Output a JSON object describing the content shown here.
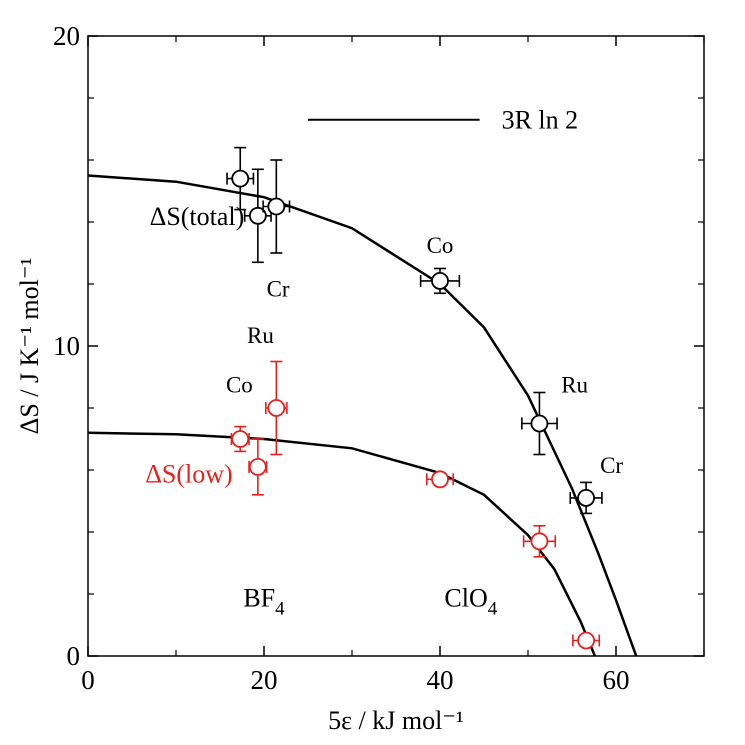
{
  "chart_data": {
    "type": "scatter",
    "xlabel": "5ε / kJ mol⁻¹",
    "ylabel": "ΔS / J K⁻¹ mol⁻¹",
    "xlim": [
      0,
      70
    ],
    "ylim": [
      0,
      20
    ],
    "x_ticks": [
      0,
      20,
      40,
      60
    ],
    "y_ticks": [
      0,
      10,
      20
    ],
    "x_minor_ticks": [
      10,
      30,
      50,
      70
    ],
    "y_minor_ticks": [
      2,
      4,
      6,
      8,
      12,
      14,
      16,
      18
    ],
    "reference_line": {
      "label": "3R ln 2",
      "y": 17.3,
      "x_range": [
        25,
        44.5
      ]
    },
    "series": [
      {
        "name": "ΔS(total)",
        "color": "#000000",
        "points": [
          {
            "x": 17.3,
            "y": 15.4,
            "xerr": 1.5,
            "yerr": 1.0
          },
          {
            "x": 19.3,
            "y": 14.2,
            "xerr": 1.5,
            "yerr": 1.5
          },
          {
            "x": 21.4,
            "y": 14.5,
            "xerr": 1.5,
            "yerr": 1.5
          },
          {
            "x": 40.0,
            "y": 12.1,
            "xerr": 2.2,
            "yerr": 0.4
          },
          {
            "x": 51.3,
            "y": 7.5,
            "xerr": 2.0,
            "yerr": 1.0
          },
          {
            "x": 56.6,
            "y": 5.1,
            "xerr": 1.8,
            "yerr": 0.5
          }
        ],
        "fit": [
          [
            0,
            15.5
          ],
          [
            10,
            15.3
          ],
          [
            20,
            14.8
          ],
          [
            30,
            13.8
          ],
          [
            40,
            12.0
          ],
          [
            45,
            10.6
          ],
          [
            50,
            8.4
          ],
          [
            55,
            5.4
          ],
          [
            58,
            3.3
          ],
          [
            60,
            1.8
          ],
          [
            62.3,
            0.0
          ]
        ]
      },
      {
        "name": "ΔS(low)",
        "color": "#e8201d",
        "points": [
          {
            "x": 17.3,
            "y": 7.0,
            "xerr": 1.0,
            "yerr": 0.4
          },
          {
            "x": 19.3,
            "y": 6.1,
            "xerr": 1.0,
            "yerr": 0.9
          },
          {
            "x": 21.4,
            "y": 8.0,
            "xerr": 1.2,
            "yerr": 1.5
          },
          {
            "x": 40.0,
            "y": 5.7,
            "xerr": 1.5,
            "yerr": 0.2
          },
          {
            "x": 51.3,
            "y": 3.7,
            "xerr": 1.8,
            "yerr": 0.5
          },
          {
            "x": 56.6,
            "y": 0.5,
            "xerr": 1.5,
            "yerr": 0.1
          }
        ],
        "fit": [
          [
            0,
            7.2
          ],
          [
            10,
            7.15
          ],
          [
            20,
            7.0
          ],
          [
            30,
            6.7
          ],
          [
            40,
            5.9
          ],
          [
            45,
            5.2
          ],
          [
            50,
            3.9
          ],
          [
            53,
            2.8
          ],
          [
            56,
            1.1
          ],
          [
            57.6,
            0.0
          ]
        ]
      }
    ],
    "series_labels": [
      {
        "text": "ΔS(total)",
        "color": "#000000",
        "x": 7,
        "y": 13.9
      },
      {
        "text": "ΔS(low)",
        "color": "#e8201d",
        "x": 6.5,
        "y": 5.6
      }
    ],
    "point_labels": [
      {
        "text": "Co",
        "x": 40.0,
        "y": 13.0
      },
      {
        "text": "Ru",
        "x": 55.3,
        "y": 8.5
      },
      {
        "text": "Cr",
        "x": 59.5,
        "y": 5.9
      },
      {
        "text": "Cr",
        "x": 21.6,
        "y": 11.6
      },
      {
        "text": "Ru",
        "x": 19.6,
        "y": 10.1
      },
      {
        "text": "Co",
        "x": 17.2,
        "y": 8.5
      }
    ],
    "group_labels": [
      {
        "text": "BF",
        "sub": "4",
        "x": 20,
        "y": 1.6
      },
      {
        "text": "ClO",
        "sub": "4",
        "x": 43.5,
        "y": 1.6
      }
    ]
  }
}
